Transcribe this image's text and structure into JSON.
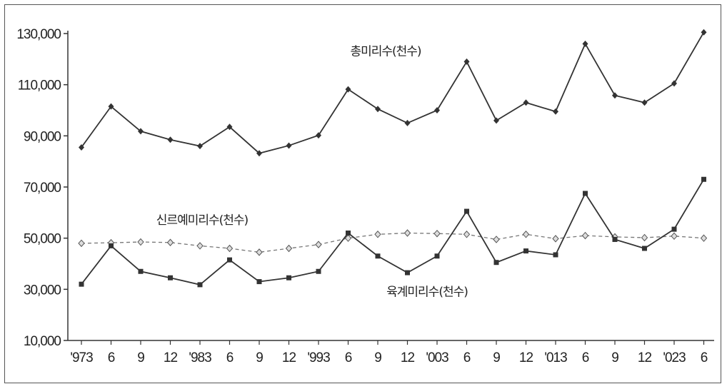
{
  "chart_data": {
    "type": "line",
    "title": "",
    "xlabel": "",
    "ylabel": "",
    "ylim": [
      10000,
      130000
    ],
    "yticks": [
      "10,000",
      "30,000",
      "50,000",
      "70,000",
      "90,000",
      "110,000",
      "130,000"
    ],
    "categories": [
      "'973",
      "6",
      "9",
      "12",
      "'983",
      "6",
      "9",
      "12",
      "'993",
      "6",
      "9",
      "12",
      "'003",
      "6",
      "9",
      "12",
      "'013",
      "6",
      "9",
      "12",
      "'023",
      "6"
    ],
    "series": [
      {
        "name": "총미리수(천수)",
        "color": "#333333",
        "style": "solid",
        "marker": "diamond",
        "values": [
          85500,
          101500,
          91800,
          88500,
          86000,
          93500,
          83200,
          86200,
          90200,
          108200,
          100500,
          95000,
          100000,
          119000,
          96000,
          103000,
          99500,
          126000,
          105800,
          103000,
          110500,
          130500
        ]
      },
      {
        "name": "신르예미리수(천수)",
        "color": "#777777",
        "style": "dashed",
        "marker": "diamond-open",
        "values": [
          48000,
          48200,
          48500,
          48300,
          47000,
          46000,
          44500,
          46000,
          47500,
          50000,
          51500,
          52000,
          51800,
          51500,
          49500,
          51500,
          49800,
          51000,
          50500,
          50200,
          50800,
          50000
        ]
      },
      {
        "name": "육계미리수(천수)",
        "color": "#333333",
        "style": "solid",
        "marker": "square",
        "values": [
          32000,
          47000,
          37000,
          34500,
          31800,
          41500,
          33000,
          34500,
          37000,
          52000,
          43000,
          36500,
          43000,
          60500,
          40500,
          45000,
          43500,
          67500,
          49500,
          46000,
          53500,
          73000
        ]
      }
    ]
  }
}
